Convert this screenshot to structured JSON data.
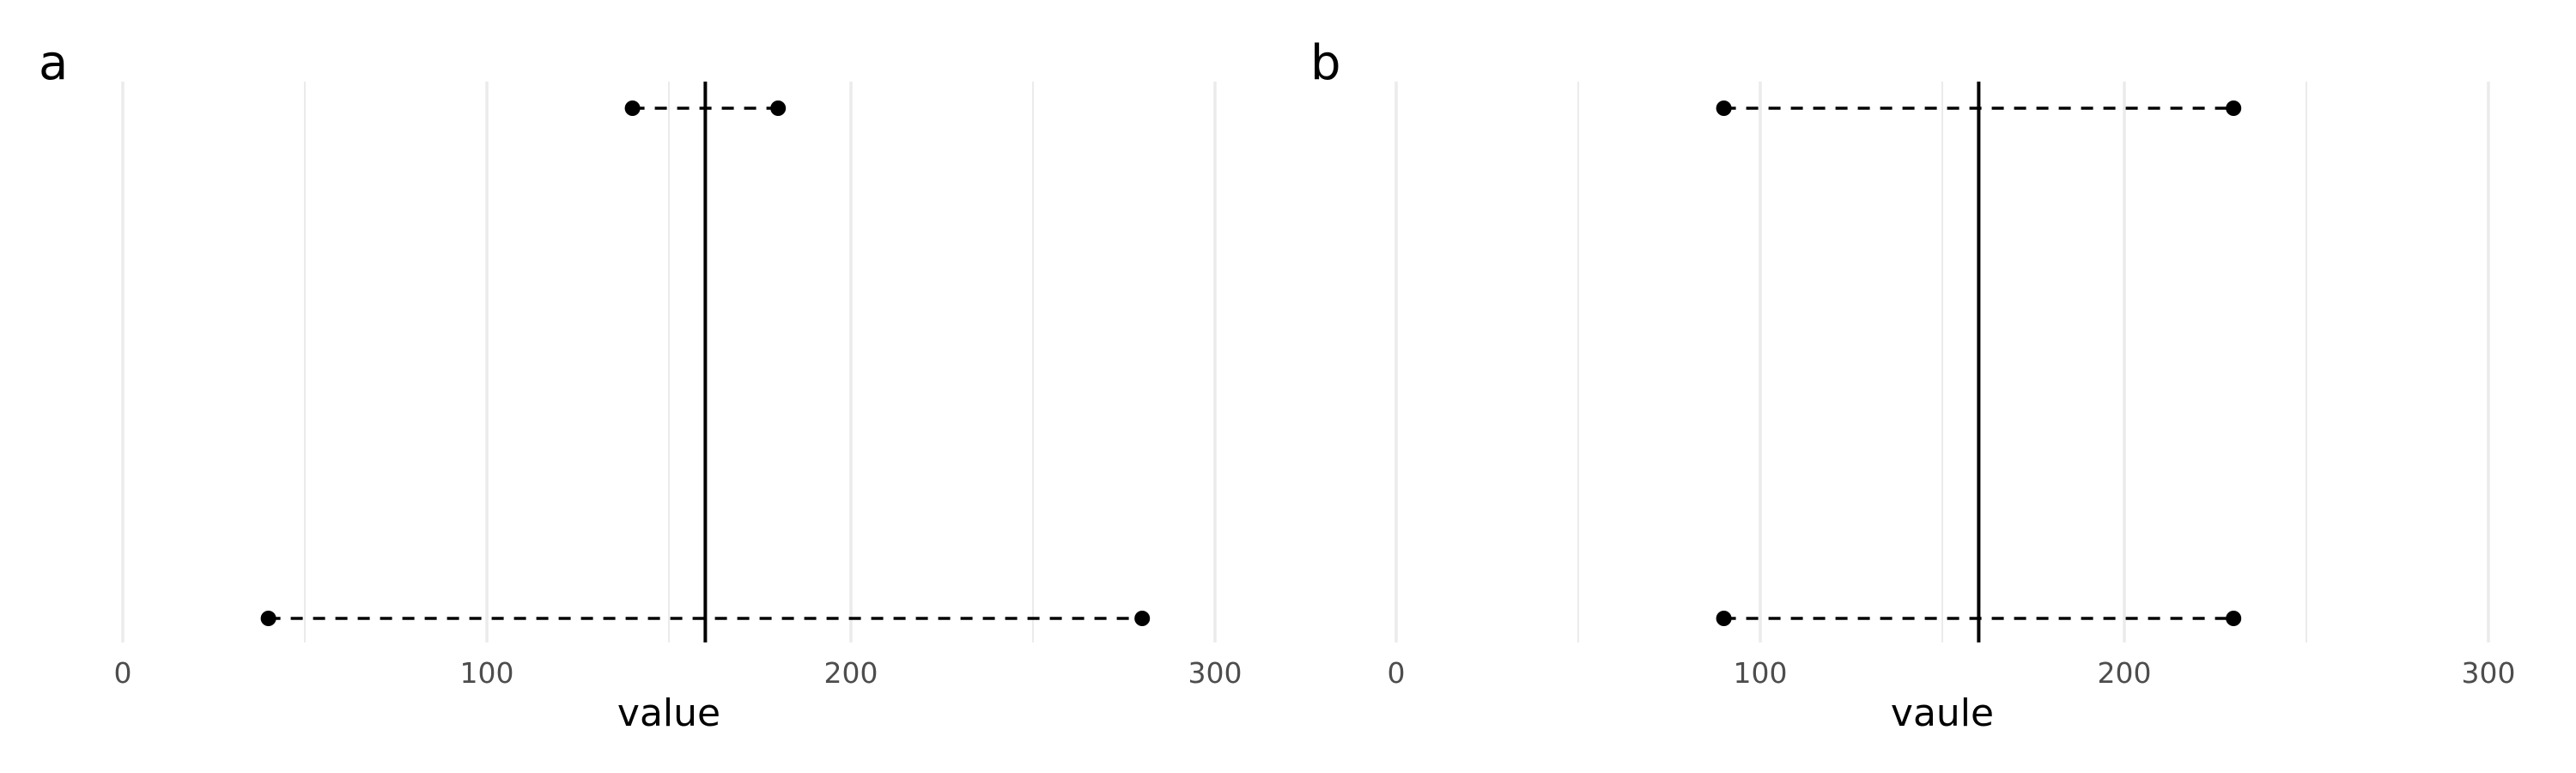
{
  "chart_data": [
    {
      "panel": "a",
      "type": "dumbbell",
      "xlabel": "value",
      "xlim": [
        0,
        300
      ],
      "major_ticks": [
        0,
        100,
        200,
        300
      ],
      "tick_labels": [
        "0",
        "100",
        "200",
        "300"
      ],
      "minor_gridlines": [
        50,
        150,
        250
      ],
      "vline": 160,
      "grid": true,
      "segments": [
        {
          "start": 140,
          "end": 180
        },
        {
          "start": 40,
          "end": 280
        }
      ]
    },
    {
      "panel": "b",
      "type": "dumbbell",
      "xlabel": "vaule",
      "xlim": [
        0,
        300
      ],
      "major_ticks": [
        0,
        100,
        200,
        300
      ],
      "tick_labels": [
        "0",
        "100",
        "200",
        "300"
      ],
      "minor_gridlines": [
        50,
        150,
        250
      ],
      "vline": 160,
      "grid": true,
      "segments": [
        {
          "start": 90,
          "end": 230
        },
        {
          "start": 90,
          "end": 230
        }
      ]
    }
  ],
  "colors": {
    "background": "#ffffff",
    "gridline": "#ebebeb",
    "mark": "#000000",
    "tick_text": "#4d4d4d"
  }
}
